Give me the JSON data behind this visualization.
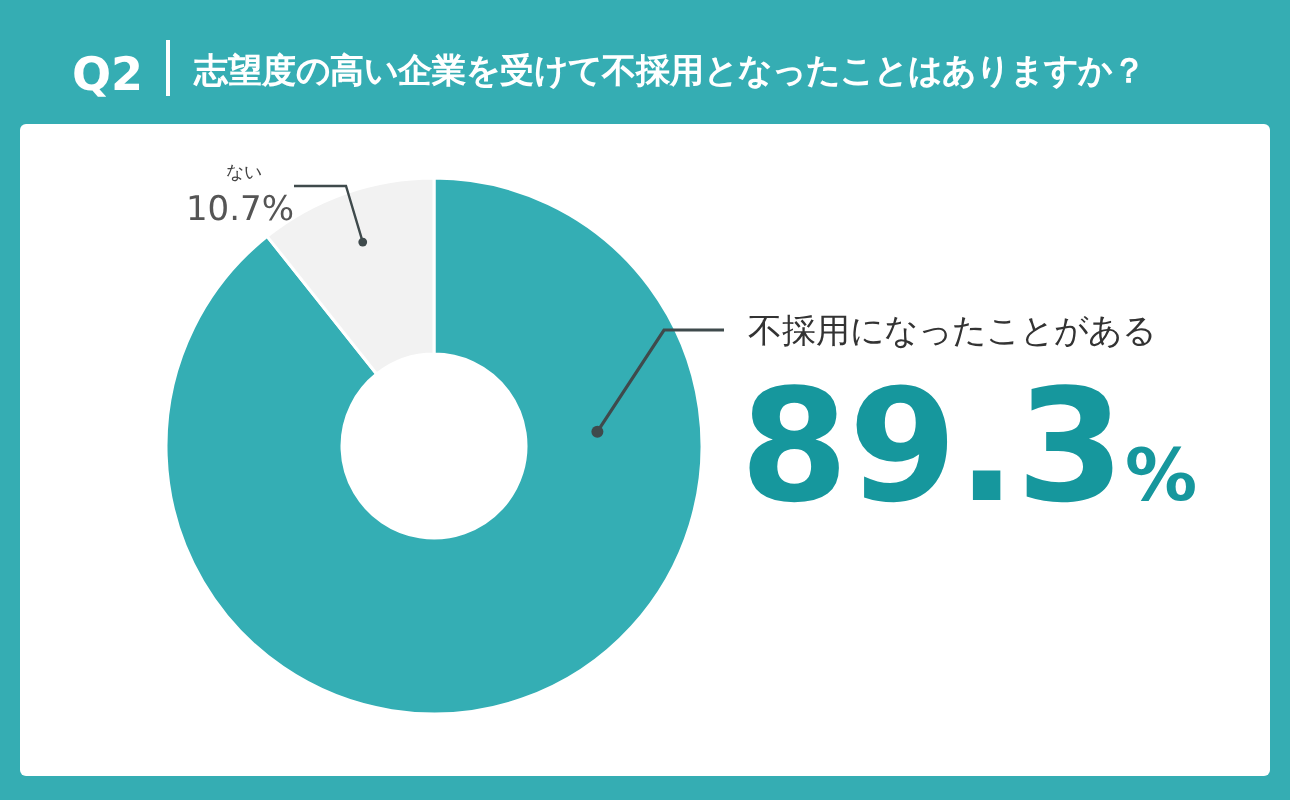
{
  "chart_data": {
    "type": "donut",
    "title": "志望度の高い企業を受けて不採用となったことはありますか？",
    "annotations": [
      "Q2"
    ],
    "categories": [
      "不採用になったことがある",
      "ない"
    ],
    "values": [
      89.3,
      10.7
    ],
    "colors": [
      "#34aeb4",
      "#f2f2f2"
    ],
    "value_labels": [
      "89.3%",
      "10.7%"
    ]
  }
}
